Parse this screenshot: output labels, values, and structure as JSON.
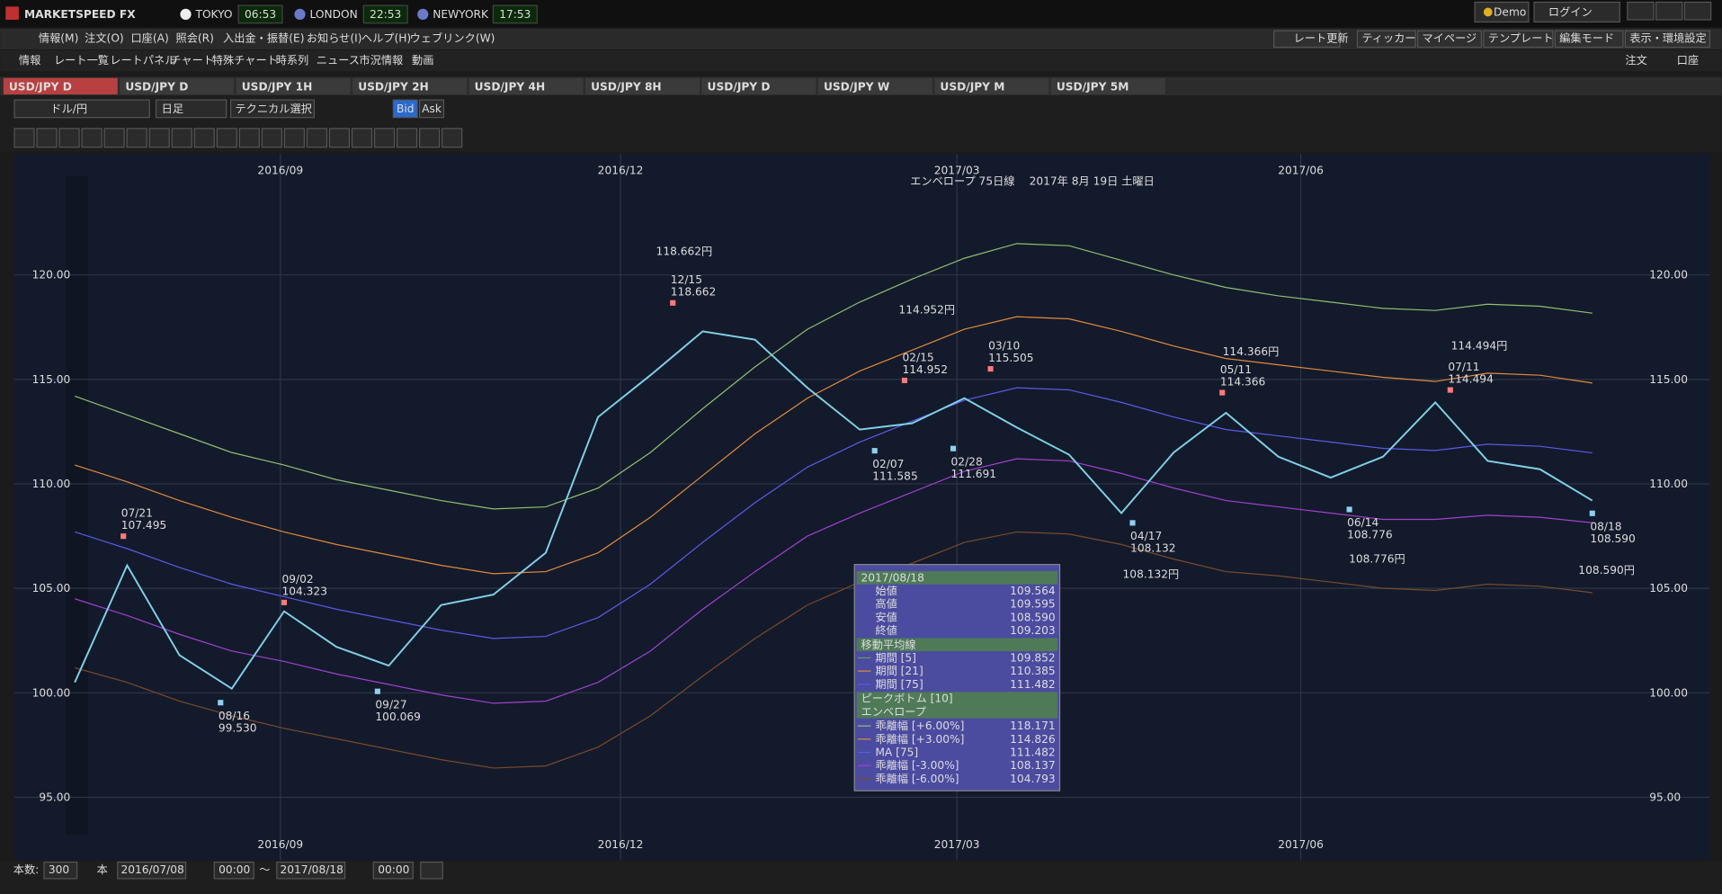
{
  "app": {
    "title": "MARKETSPEED FX",
    "clocks": [
      {
        "city": "TOKYO",
        "time": "06:53"
      },
      {
        "city": "LONDON",
        "time": "22:53"
      },
      {
        "city": "NEWYORK",
        "time": "17:53"
      }
    ],
    "account": "Demo",
    "login": "ログイン"
  },
  "menu": [
    "情報(M)",
    "注文(O)",
    "口座(A)",
    "照会(R)",
    "入出金・振替(E)",
    "お知らせ(I)",
    "ヘルプ(H)",
    "ウェブリンク(W)"
  ],
  "menu_right": [
    "レート更新",
    "ティッカー",
    "マイページ",
    "テンプレート",
    "編集モード",
    "表示・環境設定"
  ],
  "toolbar": [
    "情報",
    "レート一覧",
    "レートパネル",
    "チャート",
    "特殊チャート",
    "時系列",
    "ニュース",
    "市況情報",
    "動画"
  ],
  "toolbar_right": [
    "注文",
    "口座"
  ],
  "tabs": [
    "USD/JPY D",
    "USD/JPY D",
    "USD/JPY 1H",
    "USD/JPY 2H",
    "USD/JPY 4H",
    "USD/JPY 8H",
    "USD/JPY D",
    "USD/JPY W",
    "USD/JPY M",
    "USD/JPY 5M"
  ],
  "chart_controls": {
    "pair": "ドル/円",
    "period": "日足",
    "technical": "テクニカル選択",
    "bid": "Bid",
    "ask": "Ask"
  },
  "footer": {
    "count_label": "本数:",
    "count": "300",
    "unit": "本",
    "from_time": "00:00",
    "sep": "～",
    "to_time": "00:00"
  },
  "chart_data": {
    "type": "line",
    "title": "エンベロープ 75日線　 2017年 8月 19日 土曜日",
    "x": [
      "2016/07/08",
      "2016/07/22",
      "2016/08/05",
      "2016/08/19",
      "2016/09/02",
      "2016/09/16",
      "2016/09/30",
      "2016/10/14",
      "2016/10/28",
      "2016/11/11",
      "2016/11/25",
      "2016/12/09",
      "2016/12/23",
      "2017/01/06",
      "2017/01/20",
      "2017/02/03",
      "2017/02/17",
      "2017/03/03",
      "2017/03/17",
      "2017/03/31",
      "2017/04/14",
      "2017/04/28",
      "2017/05/12",
      "2017/05/26",
      "2017/06/09",
      "2017/06/23",
      "2017/07/07",
      "2017/07/21",
      "2017/08/04",
      "2017/08/18"
    ],
    "xlim": [
      "2016/07/08",
      "2017/08/18"
    ],
    "xticks": [
      "2016/09",
      "2016/12",
      "2017/03",
      "2017/06"
    ],
    "ylim": [
      92.0,
      125.8
    ],
    "yticks": [
      {
        "value": 95,
        "label": "95.00"
      },
      {
        "value": 100,
        "label": "100.00"
      },
      {
        "value": 105,
        "label": "105.00"
      },
      {
        "value": 110,
        "label": "110.00"
      },
      {
        "value": 115,
        "label": "115.00"
      },
      {
        "value": 120,
        "label": "120.00"
      }
    ],
    "grid": true,
    "series": [
      {
        "name": "終値",
        "color": "#7fd0e8",
        "values": [
          100.5,
          106.1,
          101.8,
          100.2,
          103.9,
          102.2,
          101.3,
          104.2,
          104.7,
          106.7,
          113.2,
          115.2,
          117.3,
          116.9,
          114.6,
          112.6,
          112.9,
          114.1,
          112.7,
          111.4,
          108.6,
          111.5,
          113.4,
          111.3,
          110.3,
          111.3,
          113.9,
          111.1,
          110.7,
          109.2
        ]
      },
      {
        "name": "乖離幅 [+6.00%]",
        "color": "#8fbf6f",
        "values": [
          114.2,
          113.3,
          112.4,
          111.5,
          110.9,
          110.2,
          109.7,
          109.2,
          108.8,
          108.9,
          109.8,
          111.5,
          113.6,
          115.6,
          117.4,
          118.7,
          119.8,
          120.8,
          121.5,
          121.4,
          120.7,
          120.0,
          119.4,
          119.0,
          118.7,
          118.4,
          118.3,
          118.6,
          118.5,
          118.171
        ]
      },
      {
        "name": "乖離幅 [+3.00%]",
        "color": "#e08a3a",
        "values": [
          110.9,
          110.1,
          109.2,
          108.4,
          107.7,
          107.1,
          106.6,
          106.1,
          105.7,
          105.8,
          106.7,
          108.4,
          110.4,
          112.4,
          114.1,
          115.4,
          116.4,
          117.4,
          118.0,
          117.9,
          117.3,
          116.6,
          116.0,
          115.7,
          115.4,
          115.1,
          114.9,
          115.3,
          115.2,
          114.826
        ]
      },
      {
        "name": "MA [75]",
        "color": "#5a5ae8",
        "values": [
          107.7,
          106.9,
          106.0,
          105.2,
          104.6,
          104.0,
          103.5,
          103.0,
          102.6,
          102.7,
          103.6,
          105.2,
          107.2,
          109.1,
          110.8,
          112.0,
          113.0,
          114.0,
          114.6,
          114.5,
          113.9,
          113.2,
          112.6,
          112.3,
          112.0,
          111.7,
          111.6,
          111.9,
          111.8,
          111.482
        ]
      },
      {
        "name": "乖離幅 [-3.00%]",
        "color": "#a040d0",
        "values": [
          104.5,
          103.7,
          102.8,
          102.0,
          101.5,
          100.9,
          100.4,
          99.9,
          99.5,
          99.6,
          100.5,
          102.0,
          104.0,
          105.8,
          107.5,
          108.6,
          109.6,
          110.6,
          111.2,
          111.1,
          110.5,
          109.8,
          109.2,
          108.9,
          108.6,
          108.3,
          108.3,
          108.5,
          108.4,
          108.137
        ]
      },
      {
        "name": "乖離幅 [-6.00%]",
        "color": "#7a4a2a",
        "values": [
          101.2,
          100.5,
          99.6,
          98.9,
          98.3,
          97.8,
          97.3,
          96.8,
          96.4,
          96.5,
          97.4,
          98.9,
          100.8,
          102.6,
          104.2,
          105.3,
          106.2,
          107.2,
          107.7,
          107.6,
          107.1,
          106.4,
          105.8,
          105.6,
          105.3,
          105.0,
          104.9,
          105.2,
          105.1,
          104.793
        ]
      }
    ],
    "peaks": [
      {
        "x": "2016/07/21",
        "date_label": "07/21",
        "value": 107.495,
        "label": "107.495",
        "side": "top"
      },
      {
        "x": "2016/08/16",
        "date_label": "08/16",
        "value": 99.53,
        "label": "99.530",
        "side": "bottom"
      },
      {
        "x": "2016/09/02",
        "date_label": "09/02",
        "value": 104.323,
        "label": "104.323",
        "side": "top"
      },
      {
        "x": "2016/09/27",
        "date_label": "09/27",
        "value": 100.069,
        "label": "100.069",
        "side": "bottom"
      },
      {
        "x": "2016/12/15",
        "date_label": "12/15",
        "value": 118.662,
        "label": "118.662",
        "side": "top"
      },
      {
        "x": "2017/02/07",
        "date_label": "02/07",
        "value": 111.585,
        "label": "111.585",
        "side": "bottom"
      },
      {
        "x": "2017/02/15",
        "date_label": "02/15",
        "value": 114.952,
        "label": "114.952",
        "side": "top"
      },
      {
        "x": "2017/02/28",
        "date_label": "02/28",
        "value": 111.691,
        "label": "111.691",
        "side": "bottom"
      },
      {
        "x": "2017/03/10",
        "date_label": "03/10",
        "value": 115.505,
        "label": "115.505",
        "side": "top"
      },
      {
        "x": "2017/04/17",
        "date_label": "04/17",
        "value": 108.132,
        "label": "108.132",
        "side": "bottom"
      },
      {
        "x": "2017/05/11",
        "date_label": "05/11",
        "value": 114.366,
        "label": "114.366",
        "side": "top"
      },
      {
        "x": "2017/06/14",
        "date_label": "06/14",
        "value": 108.776,
        "label": "108.776",
        "side": "bottom"
      },
      {
        "x": "2017/07/11",
        "date_label": "07/11",
        "value": 114.494,
        "label": "114.494",
        "side": "top"
      },
      {
        "x": "2017/08/18",
        "date_label": "08/18",
        "value": 108.59,
        "label": "108.590",
        "side": "bottom"
      }
    ],
    "callouts": [
      "118.662円",
      "114.952円",
      "114.366円",
      "114.494円",
      "108.132円",
      "108.776円",
      "108.590円"
    ]
  },
  "tooltip": {
    "date": "2017/08/18",
    "ohlc": [
      [
        "始値",
        "109.564"
      ],
      [
        "高値",
        "109.595"
      ],
      [
        "安値",
        "108.590"
      ]
    ],
    "close": "109.203",
    "ma_title": "移動平均線",
    "ma": [
      [
        "期間 [5]",
        "109.852"
      ],
      [
        "期間 [21]",
        "110.385"
      ],
      [
        "期間 [75]",
        "111.482"
      ]
    ],
    "peak_title": "ピークボトム [10]",
    "env_title": "エンベロープ",
    "env_values": [
      "118.171",
      "114.826",
      "111.482",
      "108.137",
      "104.793"
    ]
  }
}
